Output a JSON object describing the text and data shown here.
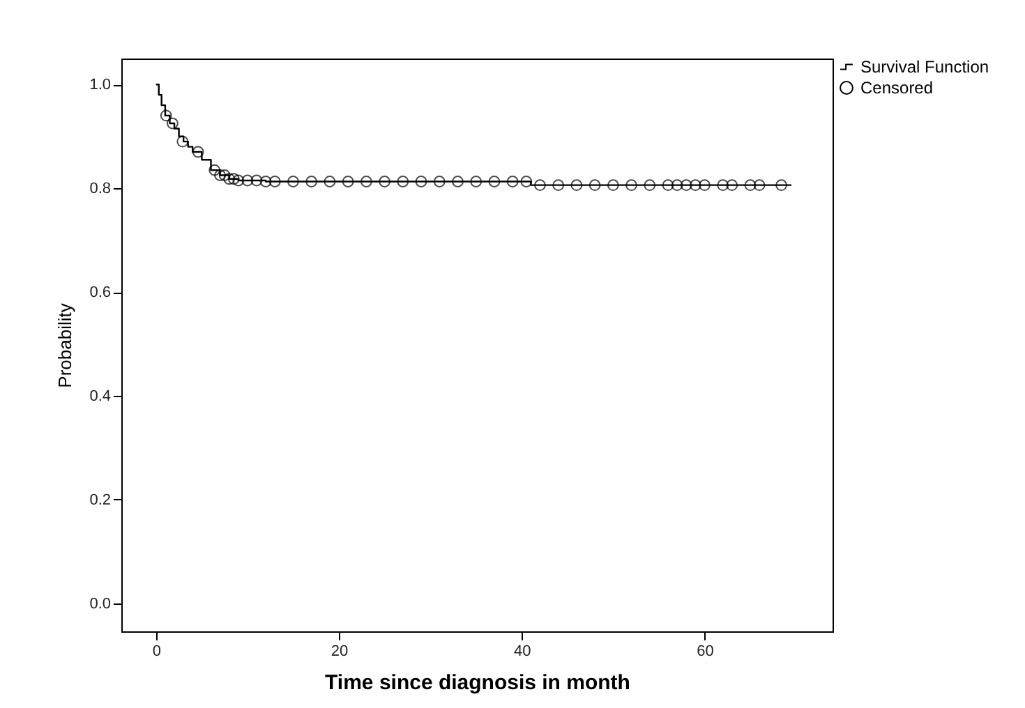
{
  "chart_data": {
    "type": "step",
    "xlabel": "Time since diagnosis in month",
    "ylabel": "Probability",
    "xlim": [
      -3.8,
      74
    ],
    "xticks": [
      0,
      20,
      40,
      60
    ],
    "ylim": [
      -0.054,
      1.05
    ],
    "yticks": [
      {
        "value": 0,
        "label": "0.0"
      },
      {
        "value": 0.2,
        "label": "0.2"
      },
      {
        "value": 0.4,
        "label": "0.4"
      },
      {
        "value": 0.6,
        "label": "0.6"
      },
      {
        "value": 0.8,
        "label": "0.8"
      },
      {
        "value": 1,
        "label": "1.0"
      }
    ],
    "grid": false,
    "legend": "top right",
    "series": [
      {
        "name": "Survival Function",
        "type": "step",
        "color": "#000000",
        "x": [
          0,
          0.3,
          0.6,
          1,
          1.5,
          2,
          2.5,
          3,
          3.5,
          4,
          5,
          6,
          7,
          8,
          9,
          12,
          41,
          69.5
        ],
        "values": [
          1,
          0.98,
          0.96,
          0.94,
          0.925,
          0.915,
          0.9,
          0.89,
          0.88,
          0.87,
          0.855,
          0.835,
          0.825,
          0.818,
          0.815,
          0.813,
          0.806,
          0.806
        ]
      },
      {
        "name": "Censored",
        "type": "scatter",
        "marker": "circle",
        "color": "#000000",
        "x": [
          1.1,
          1.8,
          2.9,
          4.6,
          6.4,
          7,
          7.5,
          8,
          8.5,
          9,
          10,
          11,
          12,
          13,
          15,
          17,
          19,
          21,
          23,
          25,
          27,
          29,
          31,
          33,
          35,
          37,
          39,
          40.5,
          42,
          44,
          46,
          48,
          50,
          52,
          54,
          56,
          57,
          58,
          59,
          60,
          62,
          63,
          65,
          66,
          68.4
        ],
        "values": [
          0.94,
          0.925,
          0.89,
          0.87,
          0.835,
          0.825,
          0.825,
          0.818,
          0.818,
          0.815,
          0.815,
          0.815,
          0.813,
          0.813,
          0.813,
          0.813,
          0.813,
          0.813,
          0.813,
          0.813,
          0.813,
          0.813,
          0.813,
          0.813,
          0.813,
          0.813,
          0.813,
          0.813,
          0.806,
          0.806,
          0.806,
          0.806,
          0.806,
          0.806,
          0.806,
          0.806,
          0.806,
          0.806,
          0.806,
          0.806,
          0.806,
          0.806,
          0.806,
          0.806,
          0.806
        ]
      }
    ]
  }
}
